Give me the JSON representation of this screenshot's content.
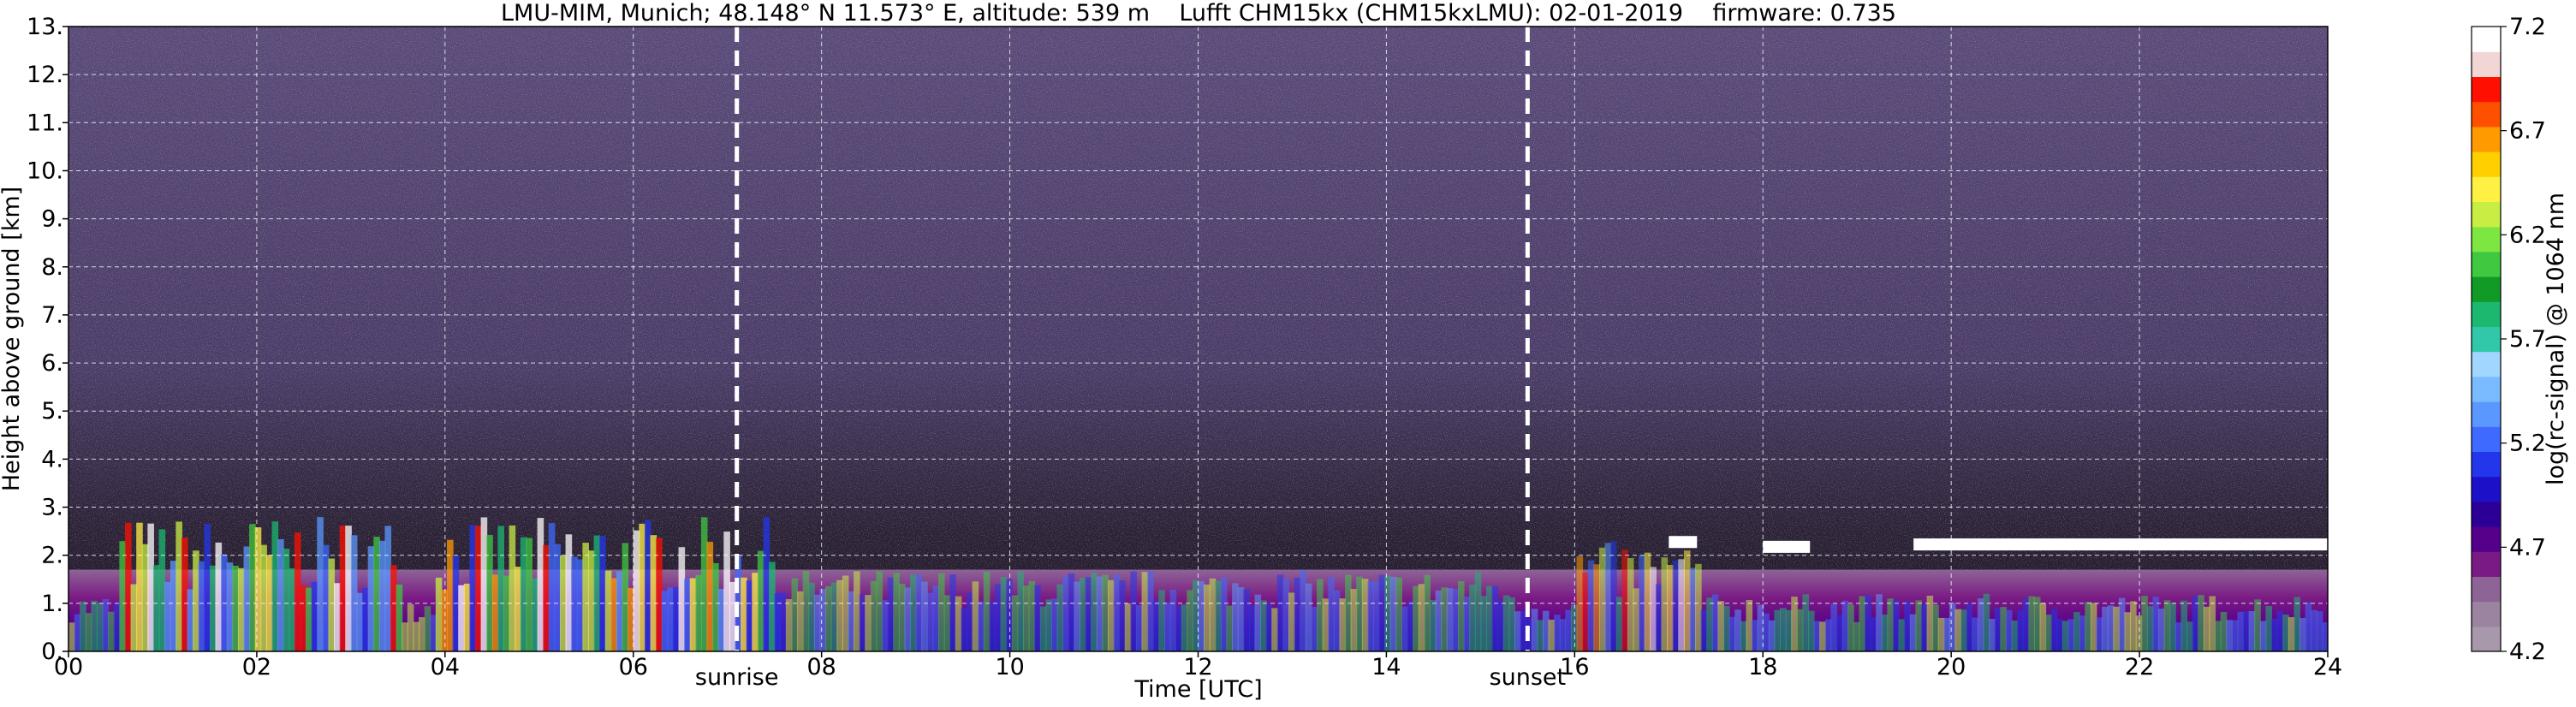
{
  "chart_data": {
    "type": "heatmap",
    "title": "LMU-MIM, Munich; 48.148° N 11.573° E, altitude: 539 m    Lufft CHM15kx (CHM15kxLMU): 02-01-2019    firmware: 0.735",
    "xlabel": "Time [UTC]",
    "ylabel": "Height above ground [km]",
    "xlim": [
      0,
      24
    ],
    "ylim": [
      0,
      13
    ],
    "x_ticks": [
      "00",
      "02",
      "04",
      "06",
      "08",
      "10",
      "12",
      "14",
      "16",
      "18",
      "20",
      "22",
      "24"
    ],
    "y_ticks": [
      "0.",
      "1.",
      "2.",
      "3.",
      "4.",
      "5.",
      "6.",
      "7.",
      "8.",
      "9.",
      "10.",
      "11.",
      "12.",
      "13."
    ],
    "grid": true,
    "vertical_markers": [
      {
        "label": "sunrise",
        "time": 7.1
      },
      {
        "label": "sunset",
        "time": 15.5
      }
    ],
    "colorbar": {
      "label": "log(rc-signal) @ 1064 nm",
      "range": [
        4.2,
        7.2
      ],
      "tick_labels": [
        "4.2",
        "4.7",
        "5.2",
        "5.7",
        "6.2",
        "6.7",
        "7.2"
      ],
      "tick_values": [
        4.2,
        4.7,
        5.2,
        5.7,
        6.2,
        6.7,
        7.2
      ],
      "colors": [
        "#a898ac",
        "#9a84a0",
        "#8e6496",
        "#7a1a84",
        "#54008a",
        "#2c0096",
        "#1c10c8",
        "#2436ec",
        "#3f6aff",
        "#5a98ff",
        "#7abaff",
        "#a0d6ff",
        "#30c8a8",
        "#1cb870",
        "#129a26",
        "#40c840",
        "#7ee640",
        "#c8ee44",
        "#fff044",
        "#ffd000",
        "#ff9a00",
        "#ff5000",
        "#ff1000",
        "#f2d6d6",
        "#ffffff"
      ]
    }
  }
}
